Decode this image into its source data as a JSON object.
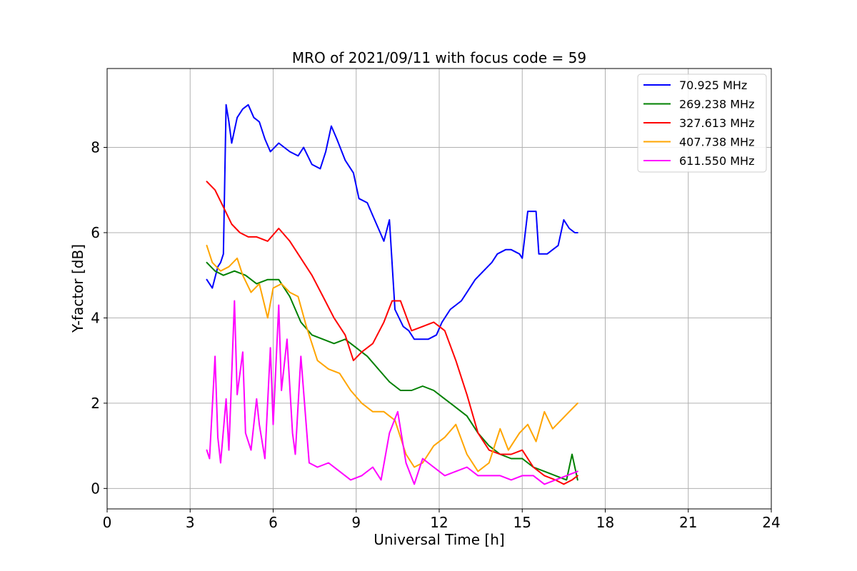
{
  "chart_data": {
    "type": "line",
    "title": "MRO of 2021/09/11 with focus code = 59",
    "xlabel": "Universal Time [h]",
    "ylabel": "Y-factor [dB]",
    "xlim": [
      0,
      24
    ],
    "ylim": [
      -0.48,
      9.85
    ],
    "xticks": [
      0,
      3,
      6,
      9,
      12,
      15,
      18,
      21,
      24
    ],
    "yticks": [
      0,
      2,
      4,
      6,
      8
    ],
    "grid": true,
    "legend_position": "top-right",
    "series": [
      {
        "name": "70.925 MHz",
        "color": "#0000ff",
        "x": [
          3.6,
          3.8,
          4.0,
          4.1,
          4.2,
          4.3,
          4.4,
          4.5,
          4.7,
          4.9,
          5.1,
          5.3,
          5.5,
          5.7,
          5.9,
          6.2,
          6.4,
          6.6,
          6.9,
          7.1,
          7.4,
          7.7,
          7.9,
          8.1,
          8.3,
          8.6,
          8.9,
          9.1,
          9.4,
          9.6,
          9.8,
          10.0,
          10.2,
          10.4,
          10.7,
          10.9,
          11.1,
          11.4,
          11.6,
          11.9,
          12.1,
          12.4,
          12.6,
          12.8,
          13.0,
          13.3,
          13.6,
          13.9,
          14.1,
          14.4,
          14.6,
          14.9,
          15.0,
          15.2,
          15.5,
          15.6,
          15.9,
          16.1,
          16.3,
          16.5,
          16.7,
          16.9,
          17.0
        ],
        "y": [
          4.9,
          4.7,
          5.2,
          5.3,
          5.5,
          9.0,
          8.6,
          8.1,
          8.7,
          8.9,
          9.0,
          8.7,
          8.6,
          8.2,
          7.9,
          8.1,
          8.0,
          7.9,
          7.8,
          8.0,
          7.6,
          7.5,
          7.9,
          8.5,
          8.2,
          7.7,
          7.4,
          6.8,
          6.7,
          6.4,
          6.1,
          5.8,
          6.3,
          4.2,
          3.8,
          3.7,
          3.5,
          3.5,
          3.5,
          3.6,
          3.9,
          4.2,
          4.3,
          4.4,
          4.6,
          4.9,
          5.1,
          5.3,
          5.5,
          5.6,
          5.6,
          5.5,
          5.4,
          6.5,
          6.5,
          5.5,
          5.5,
          5.6,
          5.7,
          6.3,
          6.1,
          6.0,
          6.0
        ]
      },
      {
        "name": "269.238 MHz",
        "color": "#008000",
        "x": [
          3.6,
          3.9,
          4.2,
          4.6,
          5.0,
          5.4,
          5.8,
          6.2,
          6.6,
          7.0,
          7.4,
          7.8,
          8.2,
          8.6,
          9.0,
          9.4,
          9.8,
          10.2,
          10.6,
          11.0,
          11.4,
          11.8,
          12.2,
          12.6,
          13.0,
          13.4,
          13.8,
          14.2,
          14.6,
          15.0,
          15.4,
          15.8,
          16.2,
          16.6,
          16.8,
          17.0
        ],
        "y": [
          5.3,
          5.1,
          5.0,
          5.1,
          5.0,
          4.8,
          4.9,
          4.9,
          4.5,
          3.9,
          3.6,
          3.5,
          3.4,
          3.5,
          3.3,
          3.1,
          2.8,
          2.5,
          2.3,
          2.3,
          2.4,
          2.3,
          2.1,
          1.9,
          1.7,
          1.3,
          1.0,
          0.8,
          0.7,
          0.7,
          0.5,
          0.4,
          0.3,
          0.2,
          0.8,
          0.2
        ]
      },
      {
        "name": "327.613 MHz",
        "color": "#ff0000",
        "x": [
          3.6,
          3.9,
          4.2,
          4.5,
          4.8,
          5.1,
          5.4,
          5.8,
          6.2,
          6.6,
          7.0,
          7.4,
          7.8,
          8.2,
          8.6,
          8.9,
          9.2,
          9.6,
          10.0,
          10.3,
          10.6,
          11.0,
          11.4,
          11.8,
          12.2,
          12.6,
          13.0,
          13.4,
          13.8,
          14.2,
          14.6,
          15.0,
          15.4,
          15.8,
          16.2,
          16.5,
          16.8,
          17.0
        ],
        "y": [
          7.2,
          7.0,
          6.6,
          6.2,
          6.0,
          5.9,
          5.9,
          5.8,
          6.1,
          5.8,
          5.4,
          5.0,
          4.5,
          4.0,
          3.6,
          3.0,
          3.2,
          3.4,
          3.9,
          4.4,
          4.4,
          3.7,
          3.8,
          3.9,
          3.7,
          3.0,
          2.2,
          1.3,
          0.9,
          0.8,
          0.8,
          0.9,
          0.5,
          0.3,
          0.2,
          0.1,
          0.2,
          0.3
        ]
      },
      {
        "name": "407.738 MHz",
        "color": "#ffa500",
        "x": [
          3.6,
          3.8,
          4.1,
          4.4,
          4.7,
          4.9,
          5.2,
          5.5,
          5.8,
          6.0,
          6.3,
          6.6,
          6.9,
          7.2,
          7.6,
          8.0,
          8.4,
          8.8,
          9.2,
          9.6,
          10.0,
          10.4,
          10.8,
          11.1,
          11.4,
          11.8,
          12.2,
          12.6,
          13.0,
          13.4,
          13.8,
          14.2,
          14.5,
          14.9,
          15.2,
          15.5,
          15.8,
          16.1,
          16.4,
          16.7,
          17.0
        ],
        "y": [
          5.7,
          5.3,
          5.1,
          5.2,
          5.4,
          5.0,
          4.6,
          4.8,
          4.0,
          4.7,
          4.8,
          4.6,
          4.5,
          3.8,
          3.0,
          2.8,
          2.7,
          2.3,
          2.0,
          1.8,
          1.8,
          1.6,
          0.8,
          0.5,
          0.6,
          1.0,
          1.2,
          1.5,
          0.8,
          0.4,
          0.6,
          1.4,
          0.9,
          1.3,
          1.5,
          1.1,
          1.8,
          1.4,
          1.6,
          1.8,
          2.0
        ]
      },
      {
        "name": "611.550 MHz",
        "color": "#ff00ff",
        "x": [
          3.6,
          3.7,
          3.9,
          4.0,
          4.1,
          4.3,
          4.4,
          4.6,
          4.7,
          4.9,
          5.0,
          5.2,
          5.4,
          5.5,
          5.7,
          5.9,
          6.0,
          6.2,
          6.3,
          6.5,
          6.7,
          6.8,
          7.0,
          7.3,
          7.6,
          8.0,
          8.4,
          8.8,
          9.2,
          9.6,
          9.9,
          10.2,
          10.5,
          10.8,
          11.1,
          11.4,
          11.8,
          12.2,
          12.6,
          13.0,
          13.4,
          13.8,
          14.2,
          14.6,
          15.0,
          15.4,
          15.8,
          16.2,
          16.6,
          17.0
        ],
        "y": [
          0.9,
          0.7,
          3.1,
          1.2,
          0.6,
          2.1,
          0.9,
          4.4,
          2.2,
          3.2,
          1.3,
          0.9,
          2.1,
          1.5,
          0.7,
          3.3,
          1.5,
          4.3,
          2.3,
          3.5,
          1.3,
          0.8,
          3.1,
          0.6,
          0.5,
          0.6,
          0.4,
          0.2,
          0.3,
          0.5,
          0.2,
          1.3,
          1.8,
          0.6,
          0.1,
          0.7,
          0.5,
          0.3,
          0.4,
          0.5,
          0.3,
          0.3,
          0.3,
          0.2,
          0.3,
          0.3,
          0.1,
          0.2,
          0.3,
          0.4
        ]
      }
    ]
  }
}
